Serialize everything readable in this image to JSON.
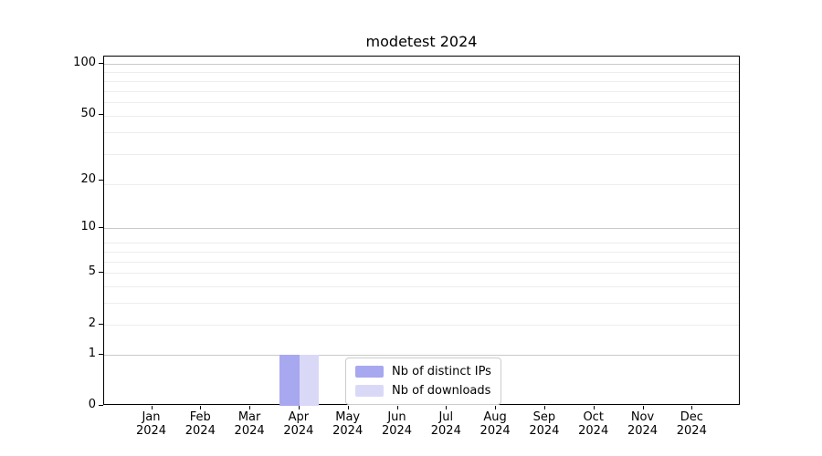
{
  "chart_data": {
    "type": "bar",
    "title": "modetest 2024",
    "categories": [
      "Jan 2024",
      "Feb 2024",
      "Mar 2024",
      "Apr 2024",
      "May 2024",
      "Jun 2024",
      "Jul 2024",
      "Aug 2024",
      "Sep 2024",
      "Oct 2024",
      "Nov 2024",
      "Dec 2024"
    ],
    "x_tick_months": [
      "Jan",
      "Feb",
      "Mar",
      "Apr",
      "May",
      "Jun",
      "Jul",
      "Aug",
      "Sep",
      "Oct",
      "Nov",
      "Dec"
    ],
    "x_tick_year": "2024",
    "series": [
      {
        "name": "Nb of distinct IPs",
        "color": "#a8a8f0",
        "values": [
          0,
          0,
          0,
          1,
          0,
          0,
          0,
          0,
          0,
          0,
          0,
          0
        ]
      },
      {
        "name": "Nb of downloads",
        "color": "#d9d9f7",
        "values": [
          0,
          0,
          0,
          1,
          0,
          0,
          0,
          0,
          0,
          0,
          0,
          0
        ]
      }
    ],
    "y_axis": {
      "scale": "log1p",
      "tick_labels": [
        "0",
        "1",
        "2",
        "5",
        "10",
        "20",
        "50",
        "100"
      ],
      "tick_values": [
        0,
        1,
        2,
        5,
        10,
        20,
        50,
        100
      ],
      "range": [
        0,
        110
      ]
    },
    "gridlines": {
      "major": [
        1,
        10,
        100
      ],
      "minor": [
        2,
        3,
        4,
        5,
        6,
        7,
        8,
        19,
        29,
        39,
        49,
        59,
        69,
        79,
        89
      ],
      "major_color": "#c9c9c9",
      "minor_color": "#ededed"
    },
    "legend": {
      "position": "lower center",
      "labels": [
        "Nb of distinct IPs",
        "Nb of downloads"
      ]
    },
    "colors": {
      "spine": "#000000",
      "text": "#1a1a1a",
      "background": "#ffffff"
    }
  }
}
